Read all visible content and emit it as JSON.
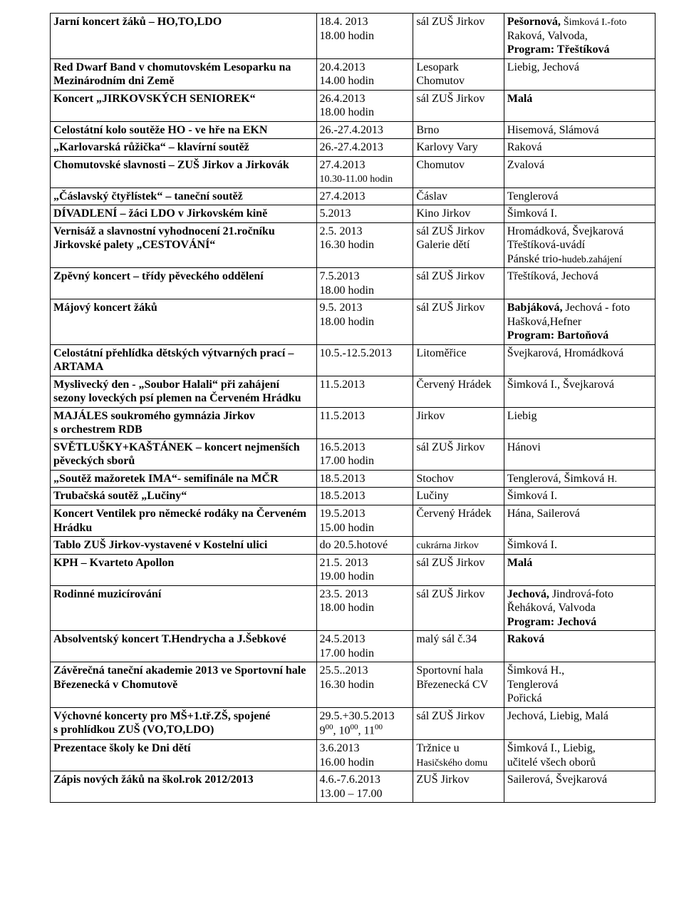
{
  "rows": [
    {
      "c1": "<b>Jarní koncert žáků – HO,TO,LDO</b>",
      "c2": "18.4. 2013<br>18.00 hodin",
      "c3": "sál ZUŠ Jirkov",
      "c4": "<b>Pešornová,</b> <span class=\"subline\">Šimková I.-foto</span><br>Raková, Valvoda,<br><b>Program: Třeštíková</b>"
    },
    {
      "c1": "<b>Red Dwarf Band v chomutovském Lesoparku na Mezinárodním dni Země</b>",
      "c2": "20.4.2013<br>14.00 hodin",
      "c3": "Lesopark Chomutov",
      "c4": "Liebig, Jechová"
    },
    {
      "c1": "<b>Koncert „JIRKOVSKÝCH SENIOREK“</b>",
      "c2": "26.4.2013<br>18.00 hodin",
      "c3": "sál ZUŠ Jirkov",
      "c4": "<b>Malá</b>"
    },
    {
      "c1": "<b>Celostátní kolo soutěže HO - ve hře na EKN</b>",
      "c2": "26.-27.4.2013",
      "c3": "Brno",
      "c4": "Hisemová, Slámová"
    },
    {
      "c1": "<b>„Karlovarská růžička“ – klavírní soutěž</b>",
      "c2": "26.-27.4.2013",
      "c3": "Karlovy Vary",
      "c4": "Raková"
    },
    {
      "c1": "<b>Chomutovské slavnosti – ZUŠ Jirkov a Jirkovák</b>",
      "c2": "27.4.2013<br><span class=\"subline\">10.30-11.00 hodin</span>",
      "c3": "Chomutov",
      "c4": "Zvalová"
    },
    {
      "c1": "<b>„Čáslavský čtyřlístek“ – taneční soutěž</b>",
      "c2": "27.4.2013",
      "c3": "Čáslav",
      "c4": "Tenglerová"
    },
    {
      "c1": "<b>DÍVADLENÍ – žáci LDO v Jirkovském kině</b>",
      "c2": "5.2013",
      "c3": "Kino Jirkov",
      "c4": "Šimková I."
    },
    {
      "c1": "<b>Vernisáž a slavnostní vyhodnocení 21.ročníku Jirkovské palety „CESTOVÁNÍ“</b>",
      "c2": "2.5. 2013<br>16.30 hodin",
      "c3": "sál ZUŠ Jirkov<br>Galerie dětí",
      "c4": "Hromádková, Švejkarová<br>Třeštíková-uvádí<br>Pánské trio-<span class=\"subline\">hudeb.zahájení</span>"
    },
    {
      "c1": "<b>Zpěvný koncert – třídy pěveckého oddělení</b>",
      "c2": "7.5.2013<br>18.00 hodin",
      "c3": "sál ZUŠ Jirkov",
      "c4": "Třeštíková, Jechová"
    },
    {
      "c1": "<b>Májový koncert žáků</b>",
      "c2": "9.5. 2013<br>18.00 hodin",
      "c3": "sál ZUŠ Jirkov",
      "c4": "<b>Babjáková,</b> Jechová - foto<br>Hašková,Hefner<br><b>Program: Bartoňová</b>"
    },
    {
      "c1": "<b>Celostátní přehlídka dětských výtvarných prací – ARTAMA</b>",
      "c2": "10.5.-12.5.2013",
      "c3": "Litoměřice",
      "c4": "Švejkarová, Hromádková"
    },
    {
      "c1": "<b>Myslivecký den - „Soubor Halali“ při zahájení sezony loveckých psí plemen na Červeném Hrádku</b>",
      "c2": "11.5.2013",
      "c3": "Červený Hrádek",
      "c4": "Šimková I., Švejkarová"
    },
    {
      "c1": "<b>MAJÁLES soukromého gymnázia Jirkov s&nbsp;orchestrem RDB</b>",
      "c2": "11.5.2013",
      "c3": "Jirkov",
      "c4": "Liebig"
    },
    {
      "c1": "<b>SVĚTLUŠKY+KAŠTÁNEK – koncert nejmenších pěveckých sborů</b>",
      "c2": "16.5.2013<br>17.00 hodin",
      "c3": "sál ZUŠ Jirkov",
      "c4": "Hánovi"
    },
    {
      "c1": "<b>„Soutěž mažoretek IMA“- semifinále na MČR</b>",
      "c2": "18.5.2013",
      "c3": "Stochov",
      "c4": "Tenglerová, Šimková <span class=\"subline\">H.</span>"
    },
    {
      "c1": "<b>Trubačská soutěž „Lučiny“</b>",
      "c2": "18.5.2013",
      "c3": "Lučiny",
      "c4": "Šimková I."
    },
    {
      "c1": "<b>Koncert Ventilek pro německé rodáky na Červeném Hrádku</b>",
      "c2": "19.5.2013<br>15.00 hodin",
      "c3": "Červený Hrádek",
      "c4": "Hána, Sailerová"
    },
    {
      "c1": "<b>Tablo ZUŠ Jirkov-vystavené v&nbsp;Kostelní ulici</b>",
      "c2": "do 20.5.hotové",
      "c3": "<span class=\"subline\">cukrárna Jirkov</span>",
      "c4": "Šimková I."
    },
    {
      "c1": "<b>KPH – Kvarteto Apollon</b>",
      "c2": "21.5. 2013<br>19.00 hodin",
      "c3": "sál ZUŠ Jirkov",
      "c4": "<b>Malá</b>"
    },
    {
      "c1": "<b>Rodinné muzicírování</b>",
      "c2": "23.5. 2013<br>18.00 hodin",
      "c3": "sál ZUŠ Jirkov",
      "c4": "<b>Jechová,</b> Jindrová-foto<br>Řeháková, Valvoda<br><b>Program: Jechová</b>"
    },
    {
      "c1": "<b>Absolventský koncert T.Hendrycha a J.Šebkové</b>",
      "c2": "24.5.2013<br>17.00 hodin",
      "c3": "malý sál č.34",
      "c4": "<b>Raková</b>"
    },
    {
      "c1": "<b>Závěrečná taneční akademie 2013 ve Sportovní hale Březenecká v&nbsp;Chomutově</b>",
      "c2": "25.5..2013<br>16.30 hodin",
      "c3": "Sportovní hala Březenecká CV",
      "c4": "Šimková H.,<br>Tenglerová<br>Pořická"
    },
    {
      "c1": "<b>Výchovné koncerty pro MŠ+1.tř.ZŠ, spojené s&nbsp;prohlídkou ZUŠ (VO,TO,LDO)</b>",
      "c2": "29.5.+30.5.2013<br>9<sup>00</sup>, 10<sup>00</sup>, 11<sup>00</sup>",
      "c3": "sál ZUŠ Jirkov",
      "c4": "Jechová, Liebig, Malá"
    },
    {
      "c1": "<b>Prezentace školy ke Dni dětí</b>",
      "c2": "3.6.2013<br>16.00 hodin",
      "c3": "Tržnice u<br><span class=\"subline\">Hasičského domu</span>",
      "c4": "Šimková I., Liebig,<br>učitelé všech oborů"
    },
    {
      "c1": "<b>Zápis nových žáků na škol.rok 2012/2013</b>",
      "c2": "4.6.-7.6.2013<br>13.00 – 17.00",
      "c3": "ZUŠ Jirkov",
      "c4": "Sailerová, Švejkarová"
    }
  ]
}
